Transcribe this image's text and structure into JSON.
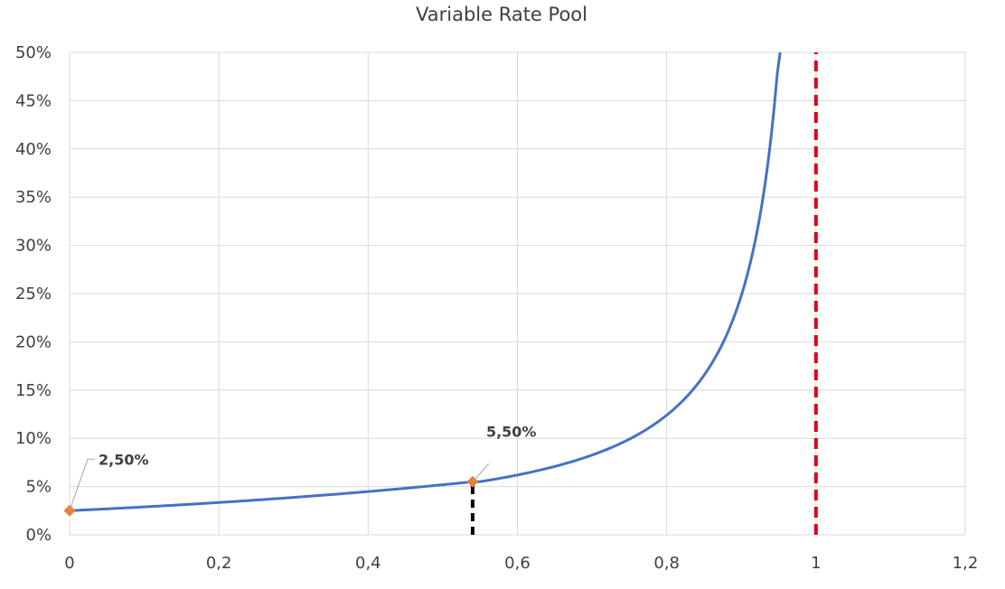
{
  "chart_data": {
    "type": "line",
    "title": "Variable Rate Pool",
    "xlabel": "",
    "ylabel": "",
    "xlim": [
      0,
      1.2
    ],
    "ylim": [
      0,
      50
    ],
    "x_ticks": [
      "0",
      "0,2",
      "0,4",
      "0,6",
      "0,8",
      "1",
      "1,2"
    ],
    "y_ticks": [
      "0%",
      "5%",
      "10%",
      "15%",
      "20%",
      "25%",
      "30%",
      "35%",
      "40%",
      "45%",
      "50%"
    ],
    "grid": true,
    "legend": "none",
    "series": [
      {
        "color": "#4472C4",
        "x": [
          0,
          0.05,
          0.1,
          0.15,
          0.2,
          0.25,
          0.3,
          0.35,
          0.4,
          0.45,
          0.5,
          0.54,
          0.6,
          0.65,
          0.7,
          0.75,
          0.8,
          0.85,
          0.88,
          0.9,
          0.92,
          0.94,
          0.95,
          0.96
        ],
        "y": [
          2.5,
          2.66,
          2.83,
          3.01,
          3.21,
          3.44,
          3.71,
          4.02,
          4.39,
          4.86,
          5.1,
          5.5,
          6.25,
          7.14,
          8.33,
          10.0,
          12.5,
          16.67,
          20.83,
          25.0,
          31.25,
          41.67,
          50.0,
          50.0
        ]
      }
    ],
    "points": [
      {
        "x": 0,
        "y": 2.5,
        "label": "2,50%",
        "color": "#ED7D31"
      },
      {
        "x": 0.54,
        "y": 5.5,
        "label": "5,50%",
        "color": "#ED7D31"
      }
    ],
    "reference_lines": [
      {
        "orientation": "vertical",
        "x": 1,
        "y_from": 0,
        "y_to": 50,
        "style": "dashed",
        "color": "#E0001B"
      },
      {
        "orientation": "vertical",
        "x": 0.54,
        "y_from": 0,
        "y_to": 5.5,
        "style": "dashed",
        "color": "#000000"
      }
    ]
  }
}
